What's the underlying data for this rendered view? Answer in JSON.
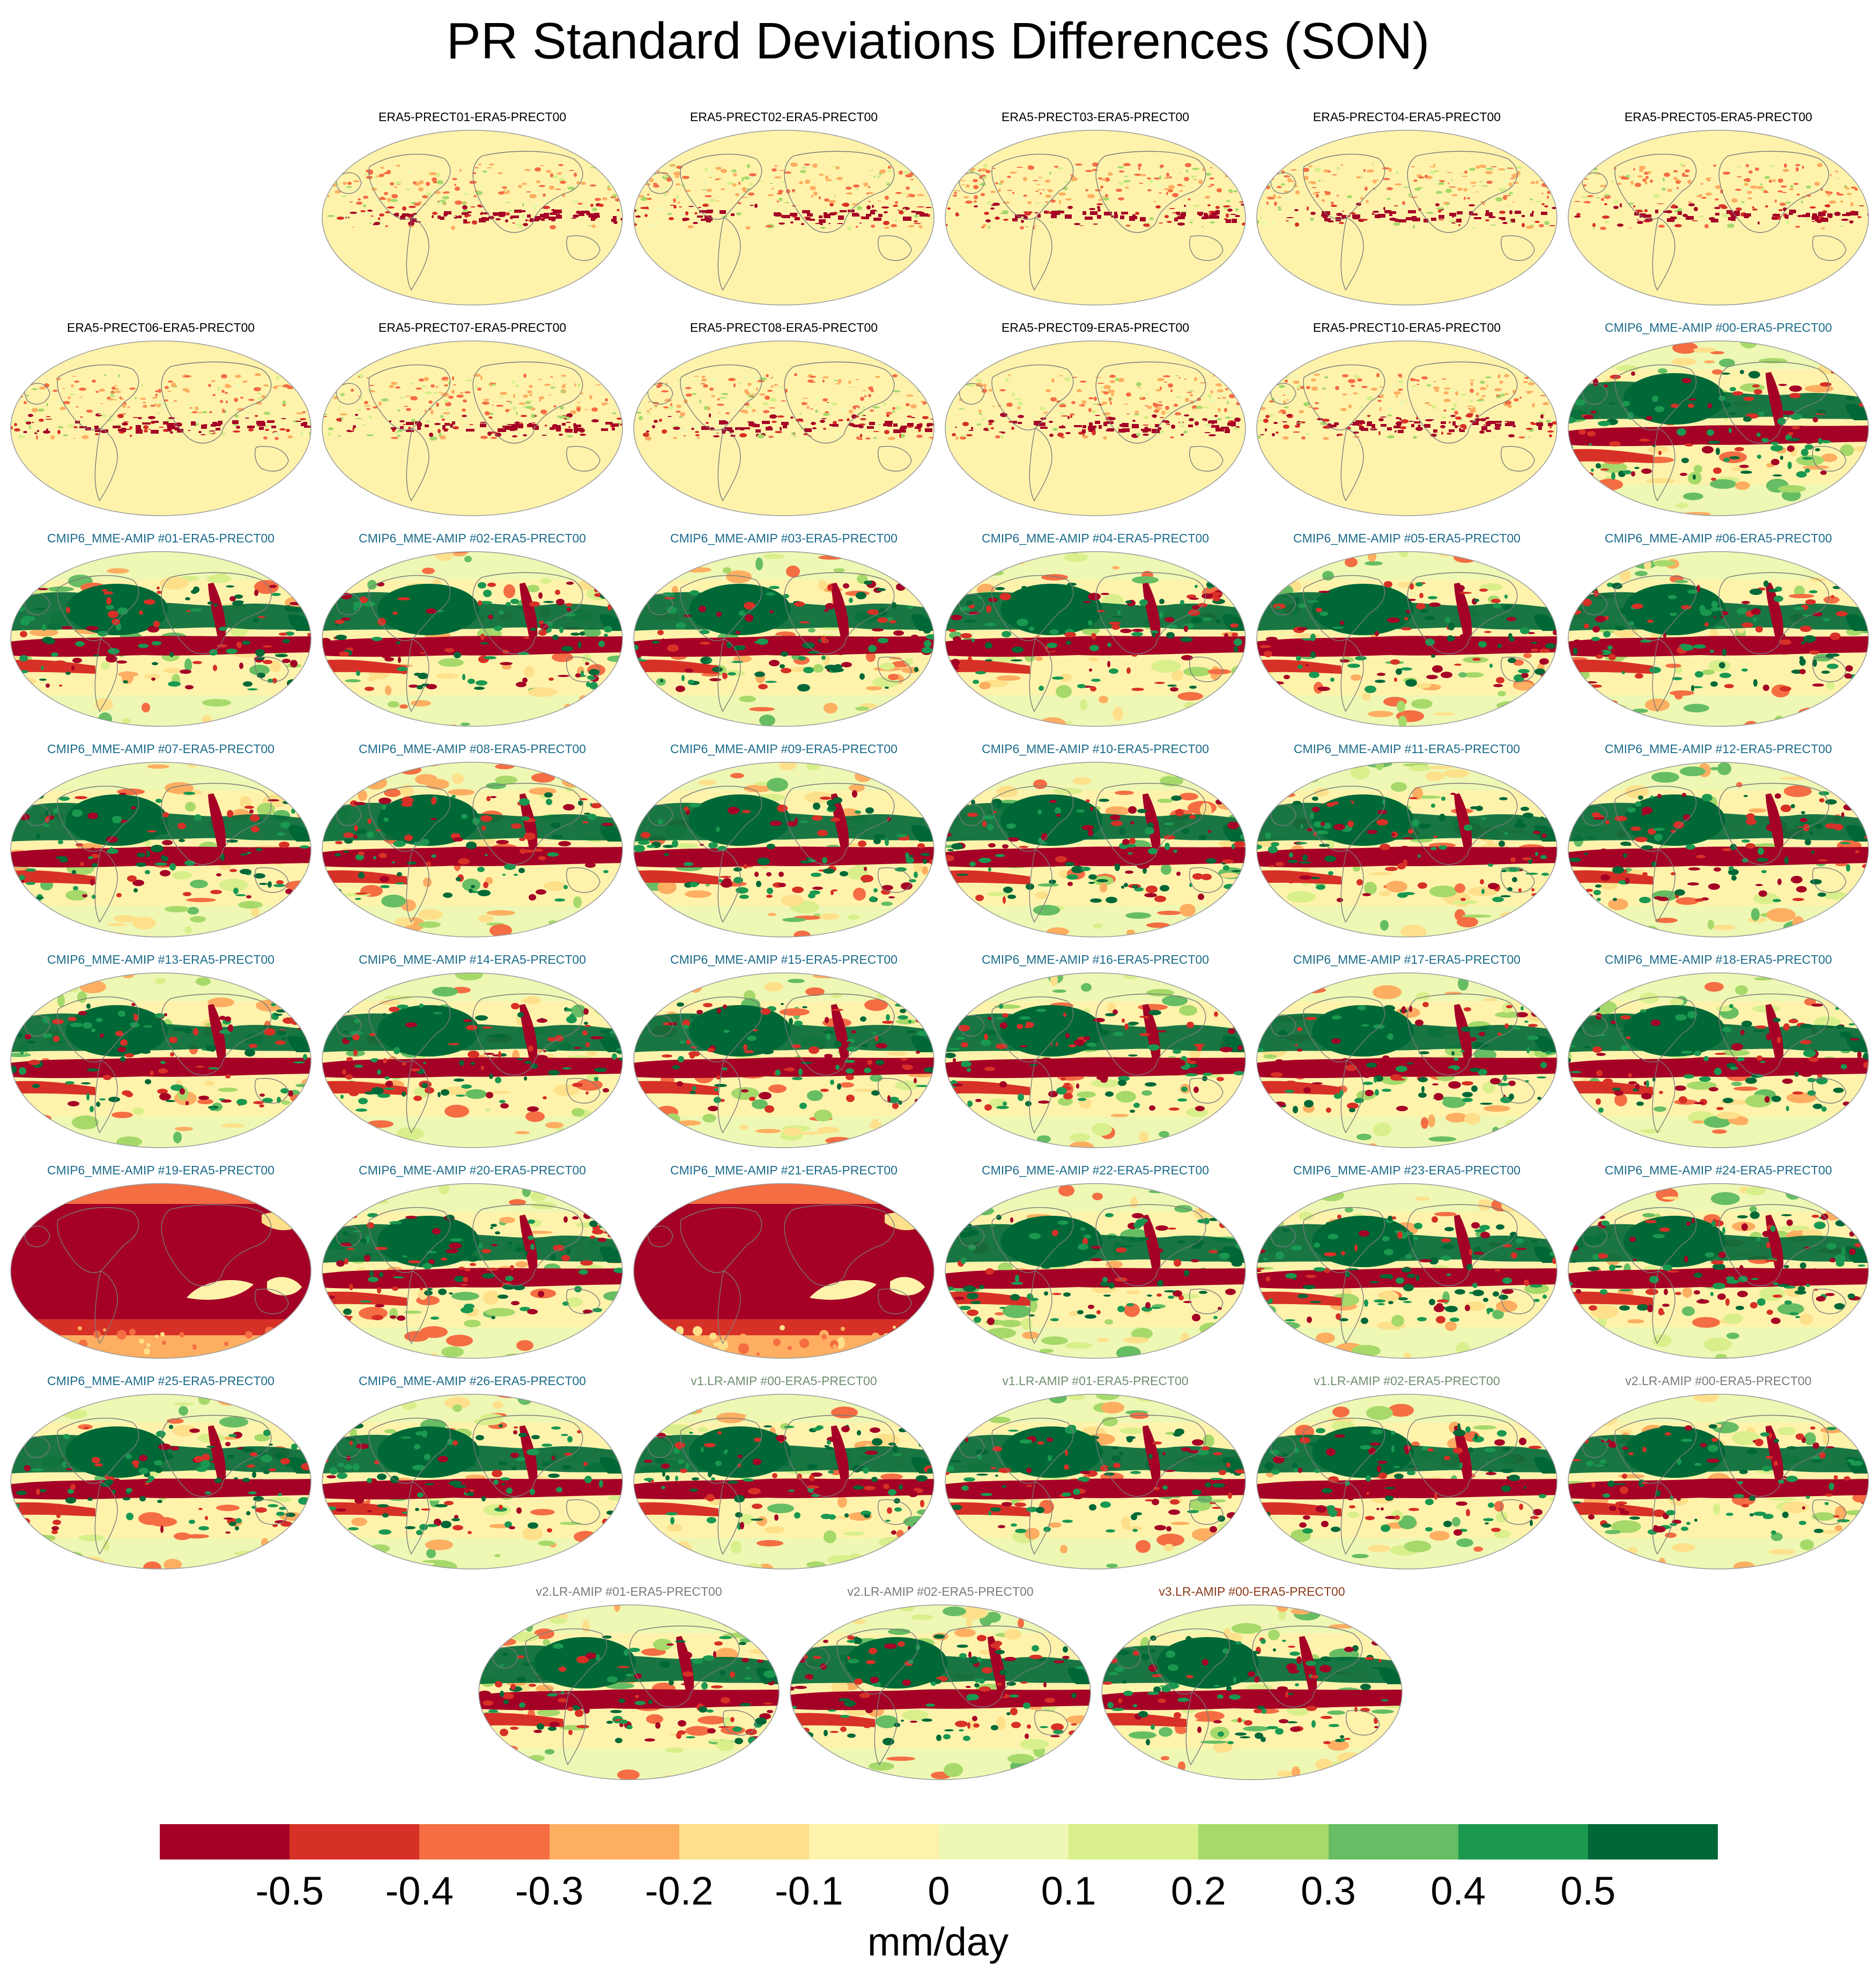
{
  "title": "PR Standard Deviations Differences (SON)",
  "panels": [
    {
      "label": "ERA5-PRECT01-ERA5-PRECT00",
      "label_color": "#000000",
      "pattern": "era5"
    },
    {
      "label": "ERA5-PRECT02-ERA5-PRECT00",
      "label_color": "#000000",
      "pattern": "era5"
    },
    {
      "label": "ERA5-PRECT03-ERA5-PRECT00",
      "label_color": "#000000",
      "pattern": "era5"
    },
    {
      "label": "ERA5-PRECT04-ERA5-PRECT00",
      "label_color": "#000000",
      "pattern": "era5"
    },
    {
      "label": "ERA5-PRECT05-ERA5-PRECT00",
      "label_color": "#000000",
      "pattern": "era5"
    },
    {
      "label": "ERA5-PRECT06-ERA5-PRECT00",
      "label_color": "#000000",
      "pattern": "era5"
    },
    {
      "label": "ERA5-PRECT07-ERA5-PRECT00",
      "label_color": "#000000",
      "pattern": "era5"
    },
    {
      "label": "ERA5-PRECT08-ERA5-PRECT00",
      "label_color": "#000000",
      "pattern": "era5"
    },
    {
      "label": "ERA5-PRECT09-ERA5-PRECT00",
      "label_color": "#000000",
      "pattern": "era5"
    },
    {
      "label": "ERA5-PRECT10-ERA5-PRECT00",
      "label_color": "#000000",
      "pattern": "era5"
    },
    {
      "label": "CMIP6_MME-AMIP  #00-ERA5-PRECT00",
      "label_color": "#1b6b8a",
      "pattern": "model"
    },
    {
      "label": "CMIP6_MME-AMIP  #01-ERA5-PRECT00",
      "label_color": "#1b6b8a",
      "pattern": "model"
    },
    {
      "label": "CMIP6_MME-AMIP  #02-ERA5-PRECT00",
      "label_color": "#1b6b8a",
      "pattern": "model"
    },
    {
      "label": "CMIP6_MME-AMIP  #03-ERA5-PRECT00",
      "label_color": "#1b6b8a",
      "pattern": "model"
    },
    {
      "label": "CMIP6_MME-AMIP  #04-ERA5-PRECT00",
      "label_color": "#1b6b8a",
      "pattern": "model"
    },
    {
      "label": "CMIP6_MME-AMIP  #05-ERA5-PRECT00",
      "label_color": "#1b6b8a",
      "pattern": "model"
    },
    {
      "label": "CMIP6_MME-AMIP  #06-ERA5-PRECT00",
      "label_color": "#1b6b8a",
      "pattern": "model"
    },
    {
      "label": "CMIP6_MME-AMIP  #07-ERA5-PRECT00",
      "label_color": "#1b6b8a",
      "pattern": "model"
    },
    {
      "label": "CMIP6_MME-AMIP  #08-ERA5-PRECT00",
      "label_color": "#1b6b8a",
      "pattern": "model"
    },
    {
      "label": "CMIP6_MME-AMIP  #09-ERA5-PRECT00",
      "label_color": "#1b6b8a",
      "pattern": "model"
    },
    {
      "label": "CMIP6_MME-AMIP  #10-ERA5-PRECT00",
      "label_color": "#1b6b8a",
      "pattern": "model"
    },
    {
      "label": "CMIP6_MME-AMIP  #11-ERA5-PRECT00",
      "label_color": "#1b6b8a",
      "pattern": "model"
    },
    {
      "label": "CMIP6_MME-AMIP  #12-ERA5-PRECT00",
      "label_color": "#1b6b8a",
      "pattern": "model"
    },
    {
      "label": "CMIP6_MME-AMIP  #13-ERA5-PRECT00",
      "label_color": "#1b6b8a",
      "pattern": "model"
    },
    {
      "label": "CMIP6_MME-AMIP  #14-ERA5-PRECT00",
      "label_color": "#1b6b8a",
      "pattern": "model"
    },
    {
      "label": "CMIP6_MME-AMIP  #15-ERA5-PRECT00",
      "label_color": "#1b6b8a",
      "pattern": "model"
    },
    {
      "label": "CMIP6_MME-AMIP  #16-ERA5-PRECT00",
      "label_color": "#1b6b8a",
      "pattern": "model"
    },
    {
      "label": "CMIP6_MME-AMIP  #17-ERA5-PRECT00",
      "label_color": "#1b6b8a",
      "pattern": "model"
    },
    {
      "label": "CMIP6_MME-AMIP  #18-ERA5-PRECT00",
      "label_color": "#1b6b8a",
      "pattern": "model"
    },
    {
      "label": "CMIP6_MME-AMIP  #19-ERA5-PRECT00",
      "label_color": "#1b6b8a",
      "pattern": "red"
    },
    {
      "label": "CMIP6_MME-AMIP  #20-ERA5-PRECT00",
      "label_color": "#1b6b8a",
      "pattern": "model"
    },
    {
      "label": "CMIP6_MME-AMIP  #21-ERA5-PRECT00",
      "label_color": "#1b6b8a",
      "pattern": "red"
    },
    {
      "label": "CMIP6_MME-AMIP  #22-ERA5-PRECT00",
      "label_color": "#1b6b8a",
      "pattern": "model"
    },
    {
      "label": "CMIP6_MME-AMIP  #23-ERA5-PRECT00",
      "label_color": "#1b6b8a",
      "pattern": "model"
    },
    {
      "label": "CMIP6_MME-AMIP  #24-ERA5-PRECT00",
      "label_color": "#1b6b8a",
      "pattern": "model"
    },
    {
      "label": "CMIP6_MME-AMIP  #25-ERA5-PRECT00",
      "label_color": "#1b6b8a",
      "pattern": "model"
    },
    {
      "label": "CMIP6_MME-AMIP  #26-ERA5-PRECT00",
      "label_color": "#1b6b8a",
      "pattern": "model"
    },
    {
      "label": "v1.LR-AMIP  #00-ERA5-PRECT00",
      "label_color": "#6f8f6f",
      "pattern": "model"
    },
    {
      "label": "v1.LR-AMIP  #01-ERA5-PRECT00",
      "label_color": "#6f8f6f",
      "pattern": "model"
    },
    {
      "label": "v1.LR-AMIP  #02-ERA5-PRECT00",
      "label_color": "#6f8f6f",
      "pattern": "model"
    },
    {
      "label": "v2.LR-AMIP  #00-ERA5-PRECT00",
      "label_color": "#7a7a7a",
      "pattern": "model"
    },
    {
      "label": "v2.LR-AMIP  #01-ERA5-PRECT00",
      "label_color": "#7a7a7a",
      "pattern": "model"
    },
    {
      "label": "v2.LR-AMIP  #02-ERA5-PRECT00",
      "label_color": "#7a7a7a",
      "pattern": "model"
    },
    {
      "label": "v3.LR-AMIP  #00-ERA5-PRECT00",
      "label_color": "#8b3a1a",
      "pattern": "model"
    }
  ],
  "colorbar": {
    "colors": [
      "#a50026",
      "#d73027",
      "#f46d43",
      "#fdae61",
      "#fee08b",
      "#fff3ac",
      "#eef7b4",
      "#d9ef8b",
      "#a6d96a",
      "#66bd63",
      "#1a9850",
      "#006837"
    ],
    "tick_labels": [
      "-0.5",
      "-0.4",
      "-0.3",
      "-0.2",
      "-0.1",
      "0",
      "0.1",
      "0.2",
      "0.3",
      "0.4",
      "0.5"
    ],
    "unit": "mm/day"
  }
}
